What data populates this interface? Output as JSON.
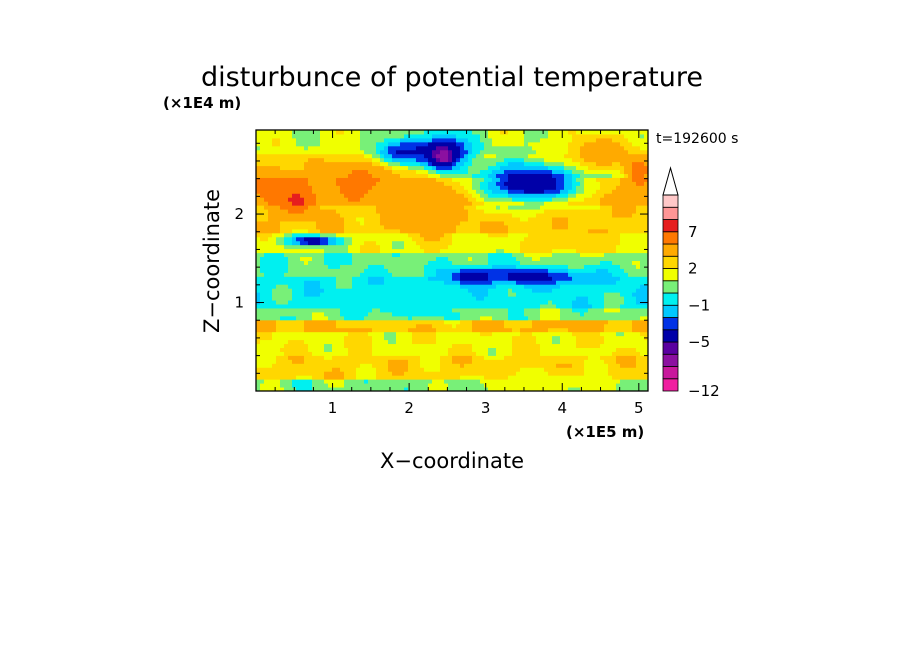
{
  "chart_data": {
    "type": "heatmap",
    "title": "disturbunce of potential temperature",
    "time_label": "t=192600 s",
    "xlabel": "X−coordinate",
    "ylabel": "Z−coordinate",
    "x_scale_label": "(×1E5 m)",
    "y_scale_label": "(×1E4 m)",
    "xlim": [
      0,
      5.12
    ],
    "ylim": [
      0,
      2.95
    ],
    "xticks": [
      1,
      2,
      3,
      4,
      5
    ],
    "yticks": [
      1,
      2
    ],
    "colorbar": {
      "levels": [
        -12,
        -10,
        -8,
        -6,
        -5,
        -3,
        -2,
        -1,
        0,
        1,
        2,
        3,
        5,
        7,
        8,
        10,
        12
      ],
      "labeled_levels": [
        7,
        2,
        -1,
        -5,
        -12
      ],
      "labels": [
        "7",
        "2",
        "−1",
        "−5",
        "−12"
      ],
      "colors": [
        "#f01ea0",
        "#c8189c",
        "#8c10a0",
        "#5a00a0",
        "#0000a8",
        "#0032e6",
        "#00c8ff",
        "#00f0f0",
        "#78f078",
        "#f0ff00",
        "#ffd700",
        "#ffaa00",
        "#ff7800",
        "#e61e1e",
        "#ff9696",
        "#ffc8c8"
      ],
      "extend": "max"
    },
    "bands": [
      {
        "z": [
          0.0,
          0.12
        ],
        "value": 0.5
      },
      {
        "z": [
          0.12,
          0.4
        ],
        "value": 2.5
      },
      {
        "z": [
          0.4,
          0.65
        ],
        "value": 1.8
      },
      {
        "z": [
          0.65,
          0.8
        ],
        "value": 3.2
      },
      {
        "z": [
          0.8,
          0.95
        ],
        "value": 0.6
      },
      {
        "z": [
          0.95,
          1.3
        ],
        "value": -0.5
      },
      {
        "z": [
          1.3,
          1.55
        ],
        "value": 0.2
      },
      {
        "z": [
          1.55,
          1.8
        ],
        "value": 1.5
      },
      {
        "z": [
          1.8,
          2.1
        ],
        "value": 2.8
      },
      {
        "z": [
          2.1,
          2.4
        ],
        "value": 4.5
      },
      {
        "z": [
          2.4,
          2.7
        ],
        "value": 2.2
      },
      {
        "z": [
          2.7,
          2.95
        ],
        "value": 1.2
      }
    ],
    "features": [
      {
        "x": 0.3,
        "z": 2.3,
        "rx": 0.3,
        "rz": 0.22,
        "value": 6.0
      },
      {
        "x": 0.55,
        "z": 2.15,
        "rx": 0.2,
        "rz": 0.15,
        "value": 7.5
      },
      {
        "x": 1.4,
        "z": 2.45,
        "rx": 0.45,
        "rz": 0.2,
        "value": 5.5
      },
      {
        "x": 2.3,
        "z": 2.1,
        "rx": 0.4,
        "rz": 0.35,
        "value": 5.0
      },
      {
        "x": 0.75,
        "z": 1.7,
        "rx": 0.35,
        "rz": 0.06,
        "value": -4.0
      },
      {
        "x": 1.9,
        "z": 2.7,
        "rx": 0.4,
        "rz": 0.15,
        "value": -3.0
      },
      {
        "x": 2.45,
        "z": 2.7,
        "rx": 0.35,
        "rz": 0.2,
        "value": -5.0
      },
      {
        "x": 2.45,
        "z": 2.65,
        "rx": 0.12,
        "rz": 0.1,
        "value": -7.0
      },
      {
        "x": 3.6,
        "z": 2.35,
        "rx": 0.8,
        "rz": 0.25,
        "value": -4.5
      },
      {
        "x": 3.55,
        "z": 1.3,
        "rx": 0.9,
        "rz": 0.1,
        "value": -3.5
      },
      {
        "x": 2.8,
        "z": 1.3,
        "rx": 0.25,
        "rz": 0.08,
        "value": -4.0
      },
      {
        "x": 4.5,
        "z": 2.7,
        "rx": 0.5,
        "rz": 0.2,
        "value": 4.0
      },
      {
        "x": 4.2,
        "z": 1.8,
        "rx": 0.7,
        "rz": 0.25,
        "value": 3.0
      },
      {
        "x": 5.0,
        "z": 2.5,
        "rx": 0.15,
        "rz": 0.15,
        "value": 6.5
      },
      {
        "x": 2.0,
        "z": 1.0,
        "rx": 0.9,
        "rz": 0.2,
        "value": -0.6
      },
      {
        "x": 3.8,
        "z": 0.1,
        "rx": 1.2,
        "rz": 0.12,
        "value": 1.5
      }
    ]
  }
}
